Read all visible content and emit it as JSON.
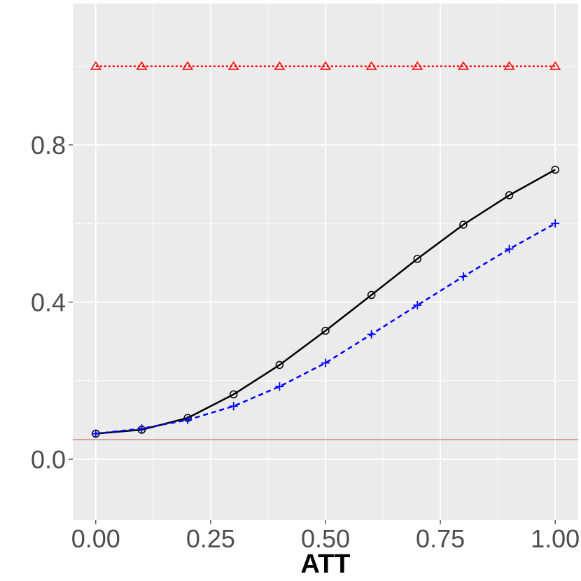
{
  "chart_data": {
    "type": "line",
    "title": "",
    "xlabel": "ATT",
    "ylabel": "",
    "xlim": [
      -0.05,
      1.05
    ],
    "ylim": [
      -0.155,
      1.16
    ],
    "x_ticks": [
      0.0,
      0.25,
      0.5,
      0.75,
      1.0
    ],
    "x_tick_labels": [
      "0.00",
      "0.25",
      "0.50",
      "0.75",
      "1.00"
    ],
    "y_ticks": [
      0.0,
      0.4,
      0.8
    ],
    "y_tick_labels": [
      "0.0",
      "0.4",
      "0.8"
    ],
    "grid": true,
    "legend": "none",
    "reference_line": {
      "y": 0.05,
      "color": "#c0504d"
    },
    "x": [
      0.0,
      0.1,
      0.2,
      0.3,
      0.4,
      0.5,
      0.6,
      0.7,
      0.8,
      0.9,
      1.0
    ],
    "series": [
      {
        "color": "#ff0000",
        "dash": "dotted",
        "marker": "triangle",
        "values": [
          1.0,
          1.0,
          1.0,
          1.0,
          1.0,
          1.0,
          1.0,
          1.0,
          1.0,
          1.0,
          1.0
        ]
      },
      {
        "color": "#000000",
        "dash": "solid",
        "marker": "circle",
        "values": [
          0.065,
          0.075,
          0.105,
          0.165,
          0.24,
          0.327,
          0.418,
          0.51,
          0.597,
          0.672,
          0.737
        ]
      },
      {
        "color": "#0000ff",
        "dash": "dashed",
        "marker": "plus",
        "values": [
          0.065,
          0.078,
          0.1,
          0.135,
          0.185,
          0.245,
          0.318,
          0.392,
          0.465,
          0.535,
          0.6
        ]
      }
    ]
  }
}
